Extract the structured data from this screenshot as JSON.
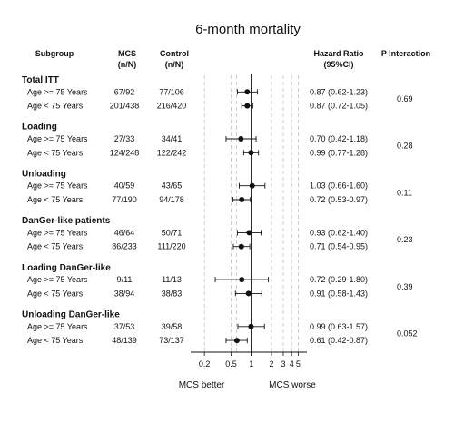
{
  "chart_data": {
    "type": "forest",
    "title": "6-month mortality",
    "headers": {
      "subgroup": "Subgroup",
      "mcs": "MCS\n(n/N)",
      "control": "Control\n(n/N)",
      "hr": "Hazard Ratio\n(95%CI)",
      "p": "P Interaction"
    },
    "x_scale": "log",
    "xlim": [
      0.16,
      5.6
    ],
    "ticks": [
      {
        "value": 0.2,
        "label": "0.2"
      },
      {
        "value": 0.5,
        "label": "0.5"
      },
      {
        "value": 1,
        "label": "1"
      },
      {
        "value": 2,
        "label": "2"
      },
      {
        "value": 3,
        "label": "3"
      },
      {
        "value": 4,
        "label": "4"
      },
      {
        "value": 5,
        "label": "5"
      }
    ],
    "reference_value": 1,
    "dashed_lines": [
      0.2,
      0.5,
      0.6,
      2,
      3,
      4,
      5
    ],
    "xlabel_left": "MCS better",
    "xlabel_right": "MCS worse",
    "groups": [
      {
        "name": "Total ITT",
        "p_interaction": "0.69",
        "rows": [
          {
            "label": "Age >= 75 Years",
            "mcs": "67/92",
            "control": "77/106",
            "hr_text": "0.87 (0.62-1.23)",
            "hr": 0.87,
            "lo": 0.62,
            "hi": 1.23
          },
          {
            "label": "Age < 75 Years",
            "mcs": "201/438",
            "control": "216/420",
            "hr_text": "0.87 (0.72-1.05)",
            "hr": 0.87,
            "lo": 0.72,
            "hi": 1.05
          }
        ]
      },
      {
        "name": "Loading",
        "p_interaction": "0.28",
        "rows": [
          {
            "label": "Age >= 75 Years",
            "mcs": "27/33",
            "control": "34/41",
            "hr_text": "0.70 (0.42-1.18)",
            "hr": 0.7,
            "lo": 0.42,
            "hi": 1.18
          },
          {
            "label": "Age < 75 Years",
            "mcs": "124/248",
            "control": "122/242",
            "hr_text": "0.99 (0.77-1.28)",
            "hr": 0.99,
            "lo": 0.77,
            "hi": 1.28
          }
        ]
      },
      {
        "name": "Unloading",
        "p_interaction": "0.11",
        "rows": [
          {
            "label": "Age >= 75 Years",
            "mcs": "40/59",
            "control": "43/65",
            "hr_text": "1.03 (0.66-1.60)",
            "hr": 1.03,
            "lo": 0.66,
            "hi": 1.6
          },
          {
            "label": "Age < 75 Years",
            "mcs": "77/190",
            "control": "94/178",
            "hr_text": "0.72 (0.53-0.97)",
            "hr": 0.72,
            "lo": 0.53,
            "hi": 0.97
          }
        ]
      },
      {
        "name": "DanGer-like patients",
        "p_interaction": "0.23",
        "rows": [
          {
            "label": "Age >= 75 Years",
            "mcs": "46/64",
            "control": "50/71",
            "hr_text": "0.93 (0.62-1.40)",
            "hr": 0.93,
            "lo": 0.62,
            "hi": 1.4
          },
          {
            "label": "Age < 75 Years",
            "mcs": "86/233",
            "control": "111/220",
            "hr_text": "0.71 (0.54-0.95)",
            "hr": 0.71,
            "lo": 0.54,
            "hi": 0.95
          }
        ]
      },
      {
        "name": "Loading DanGer-like",
        "p_interaction": "0.39",
        "rows": [
          {
            "label": "Age >= 75 Years",
            "mcs": "9/11",
            "control": "11/13",
            "hr_text": "0.72 (0.29-1.80)",
            "hr": 0.72,
            "lo": 0.29,
            "hi": 1.8
          },
          {
            "label": "Age < 75 Years",
            "mcs": "38/94",
            "control": "38/83",
            "hr_text": "0.91 (0.58-1.43)",
            "hr": 0.91,
            "lo": 0.58,
            "hi": 1.43
          }
        ]
      },
      {
        "name": "Unloading DanGer-like",
        "p_interaction": "0.052",
        "rows": [
          {
            "label": "Age >= 75 Years",
            "mcs": "37/53",
            "control": "39/58",
            "hr_text": "0.99 (0.63-1.57)",
            "hr": 0.99,
            "lo": 0.63,
            "hi": 1.57
          },
          {
            "label": "Age < 75 Years",
            "mcs": "48/139",
            "control": "73/137",
            "hr_text": "0.61 (0.42-0.87)",
            "hr": 0.61,
            "lo": 0.42,
            "hi": 0.87
          }
        ]
      }
    ]
  }
}
